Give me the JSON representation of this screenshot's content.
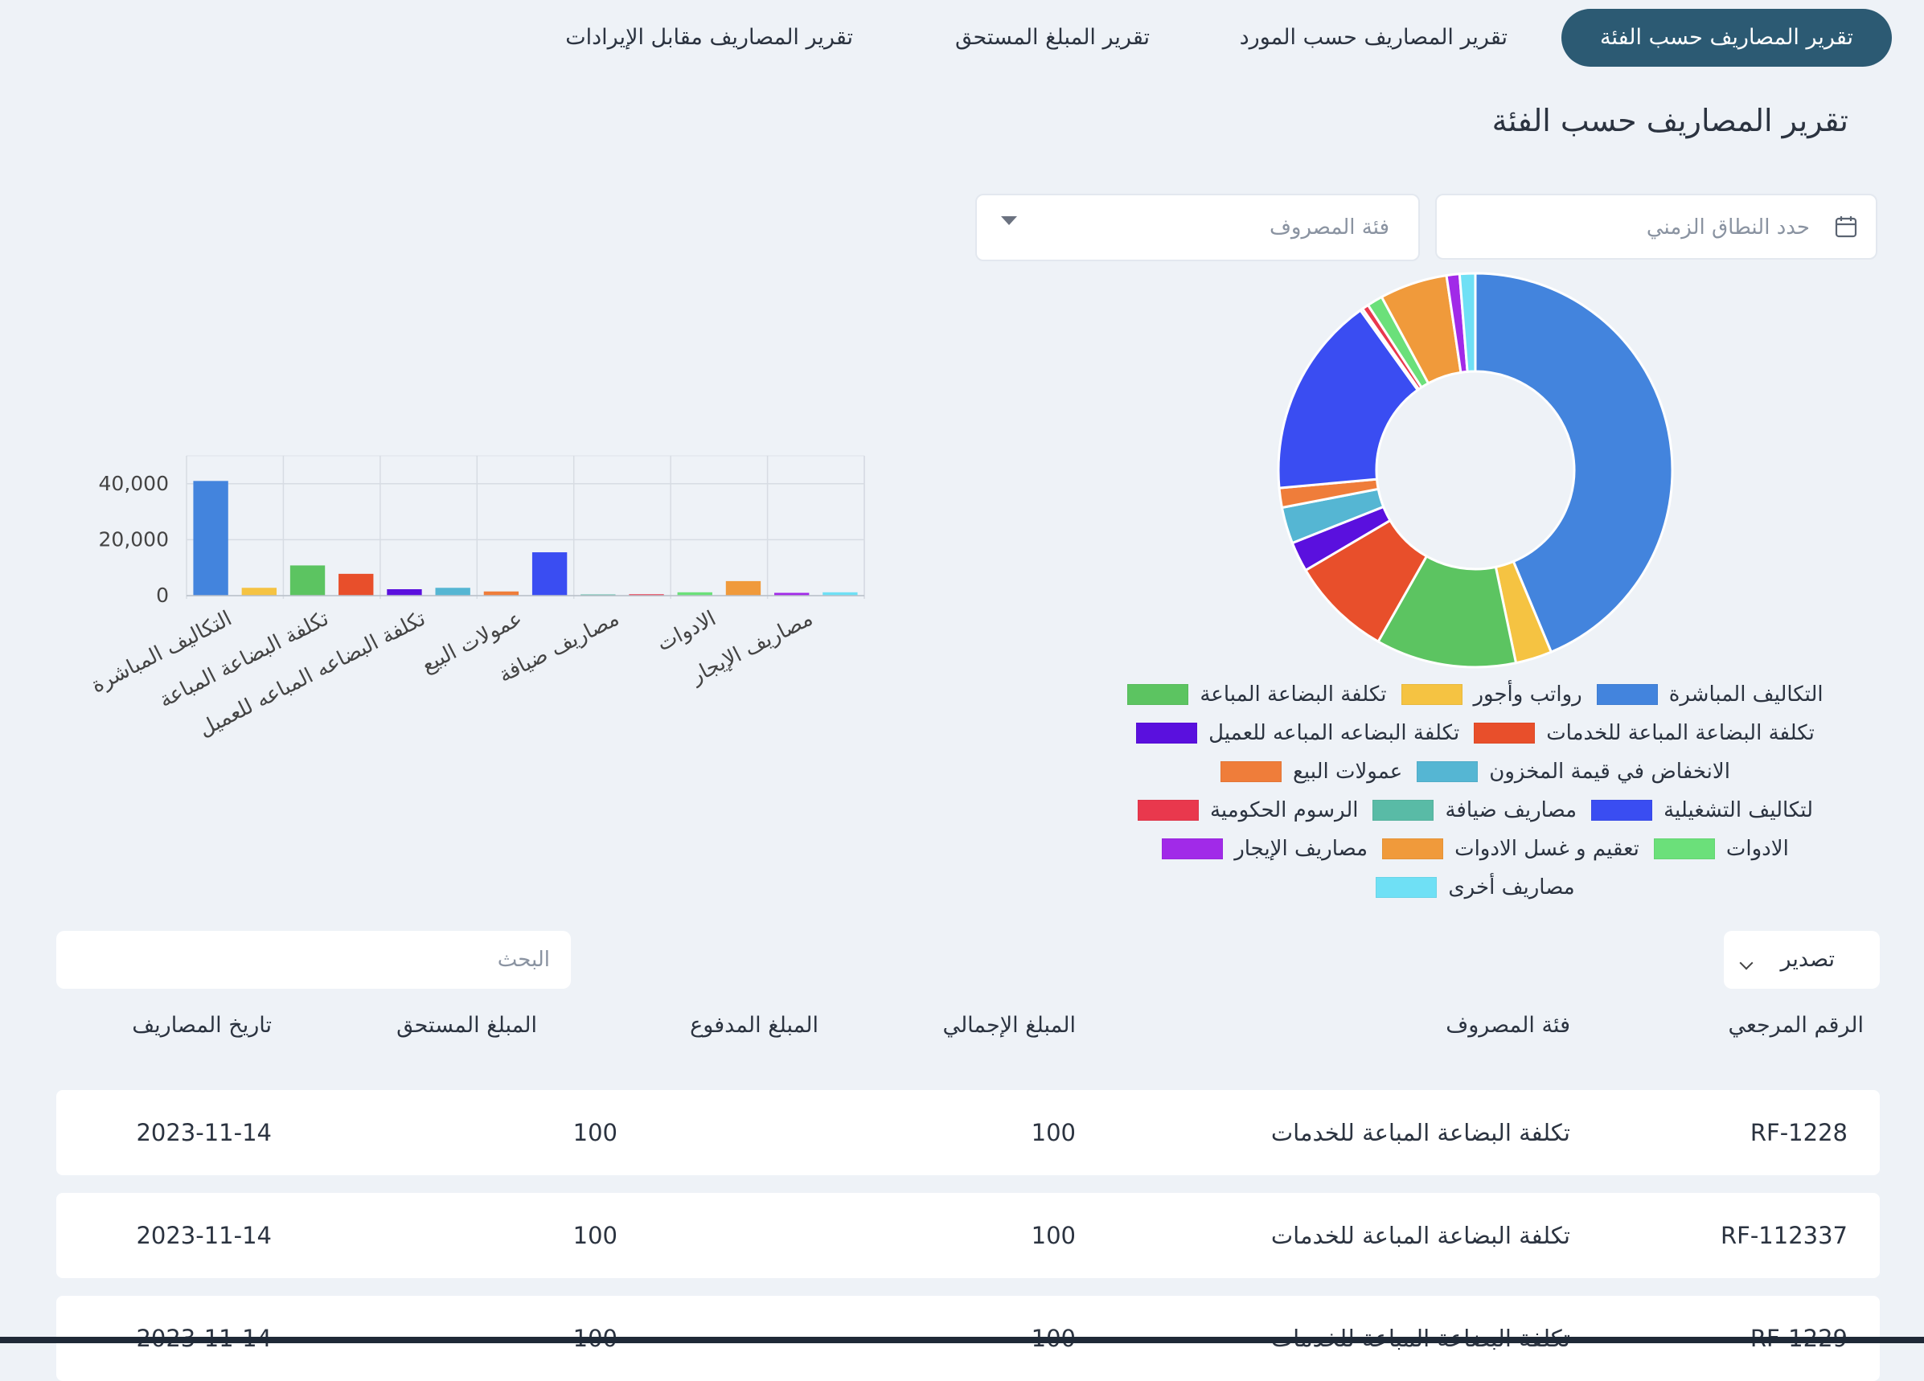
{
  "tabs": [
    {
      "label": "تقرير المصاريف حسب الفئة",
      "active": true
    },
    {
      "label": "تقرير المصاريف حسب المورد",
      "active": false
    },
    {
      "label": "تقرير المبلغ المستحق",
      "active": false
    },
    {
      "label": "تقرير المصاريف مقابل الإيرادات",
      "active": false
    }
  ],
  "page_title": "تقرير المصاريف حسب الفئة",
  "filters": {
    "date_range_placeholder": "حدد النطاق الزمني",
    "category_placeholder": "فئة المصروف"
  },
  "icons": {
    "date": "calendar-icon",
    "category": "chevron-down-icon",
    "export": "chevron-down-icon"
  },
  "chart_data": [
    {
      "type": "bar",
      "categories": [
        "التكاليف المباشرة",
        "رواتب وأجور",
        "تكلفة البضاعة المباعة",
        "تكلفة البضاعة المباعة للخدمات",
        "تكلفة البضاعه المباعه للعميل",
        "الانخفاض في قيمة المخزون",
        "عمولات البيع",
        "لتكاليف التشغيلية",
        "مصاريف ضيافة",
        "الرسوم الحكومية",
        "الادوات",
        "تعقيم و غسل الادوات",
        "مصاريف الإيجار",
        "مصاريف أخرى"
      ],
      "tick_labels": [
        "التكاليف المباشرة",
        "تكلفة البضاعة المباعة",
        "تكلفة البضاعه المباعه للعميل",
        "عمولات البيع",
        "مصاريف ضيافة",
        "الادوات",
        "مصاريف الإيجار"
      ],
      "values": [
        41000,
        2800,
        10800,
        7800,
        2300,
        2800,
        1500,
        15500,
        200,
        500,
        1200,
        5200,
        1000,
        1200
      ],
      "yticks": [
        "0",
        "20,000",
        "40,000"
      ],
      "ylim": [
        0,
        50000
      ],
      "grid": true,
      "colors": [
        "#4384dd",
        "#f5c342",
        "#5cc461",
        "#e84f2b",
        "#5a10de",
        "#55b6d3",
        "#ef7d3a",
        "#3a4df2",
        "#59bba6",
        "#e9384d",
        "#6be07a",
        "#f09a3b",
        "#a12ae8",
        "#6fe0f5"
      ]
    },
    {
      "type": "pie",
      "categories": [
        "التكاليف المباشرة",
        "رواتب وأجور",
        "تكلفة البضاعة المباعة",
        "تكلفة البضاعة المباعة للخدمات",
        "تكلفة البضاعه المباعه للعميل",
        "الانخفاض في قيمة المخزون",
        "عمولات البيع",
        "لتكاليف التشغيلية",
        "مصاريف ضيافة",
        "الرسوم الحكومية",
        "الادوات",
        "تعقيم و غسل الادوات",
        "مصاريف الإيجار",
        "مصاريف أخرى"
      ],
      "values": [
        41000,
        2800,
        10800,
        7800,
        2300,
        2800,
        1500,
        15500,
        200,
        500,
        1200,
        5200,
        1000,
        1200
      ],
      "colors": [
        "#4384dd",
        "#f5c342",
        "#5cc461",
        "#e84f2b",
        "#5a10de",
        "#55b6d3",
        "#ef7d3a",
        "#3a4df2",
        "#59bba6",
        "#e9384d",
        "#6be07a",
        "#f09a3b",
        "#a12ae8",
        "#6fe0f5"
      ],
      "legend_position": "bottom"
    }
  ],
  "legend_rows": [
    [
      0,
      1,
      2
    ],
    [
      3,
      4
    ],
    [
      5,
      6
    ],
    [
      7,
      8,
      9
    ],
    [
      10,
      11,
      12
    ],
    [
      13
    ]
  ],
  "search": {
    "placeholder": "البحث"
  },
  "export": {
    "label": "تصدير"
  },
  "table": {
    "columns": [
      "الرقم المرجعي",
      "فئة المصروف",
      "المبلغ الإجمالي",
      "المبلغ المدفوع",
      "المبلغ المستحق",
      "تاريخ المصاريف"
    ],
    "rows": [
      {
        "ref": "RF-1228",
        "category": "تكلفة البضاعة المباعة للخدمات",
        "total": "100",
        "paid": "",
        "due": "100",
        "date": "2023-11-14"
      },
      {
        "ref": "RF-112337",
        "category": "تكلفة البضاعة المباعة للخدمات",
        "total": "100",
        "paid": "",
        "due": "100",
        "date": "2023-11-14"
      },
      {
        "ref": "RF-1229",
        "category": "تكلفة البضاعة المباعة للخدمات",
        "total": "100",
        "paid": "",
        "due": "100",
        "date": "2023-11-14"
      }
    ]
  }
}
